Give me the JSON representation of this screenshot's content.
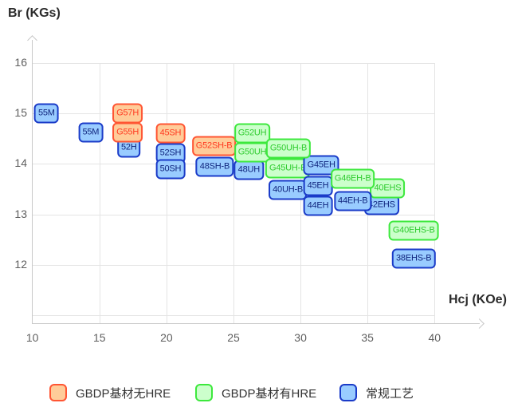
{
  "legend": [
    {
      "label": "GBDP基材无HRE",
      "category": "orange"
    },
    {
      "label": "GBDP基材有HRE",
      "category": "green"
    },
    {
      "label": "常规工艺",
      "category": "blue"
    }
  ],
  "colors": {
    "orange": {
      "fill": "#FFCC99",
      "border": "#FF5533",
      "text": "#FF3B22"
    },
    "green": {
      "fill": "#CCFFCC",
      "border": "#3DE83D",
      "text": "#2FCC2F"
    },
    "blue": {
      "fill": "#99CCFF",
      "border": "#1A3BC8",
      "text": "#10257E"
    }
  },
  "chart_data": {
    "type": "scatter",
    "title": "",
    "xlabel": "Hcj (KOe)",
    "ylabel": "Br (KGs)",
    "xlim": [
      10,
      41
    ],
    "ylim": [
      11,
      16.5
    ],
    "x_ticks": [
      10,
      15,
      20,
      25,
      30,
      35,
      40
    ],
    "y_ticks": [
      16,
      15,
      14,
      13,
      12
    ],
    "x_gridlines": [
      15,
      20,
      25,
      30,
      35,
      40
    ],
    "y_gridlines": [
      16,
      15,
      14,
      13,
      12,
      11
    ],
    "grid": true,
    "legend_position": "bottom",
    "series": [
      {
        "name": "GBDP基材无HRE",
        "category": "orange",
        "points": [
          {
            "label": "G57H",
            "hcj": 17.1,
            "br": 15.0,
            "z": 4
          },
          {
            "label": "G55H",
            "hcj": 17.1,
            "br": 14.62,
            "z": 5
          },
          {
            "label": "45SH",
            "hcj": 20.3,
            "br": 14.6,
            "z": 8
          },
          {
            "label": "G52SH-B",
            "hcj": 23.55,
            "br": 14.36,
            "z": 10
          }
        ]
      },
      {
        "name": "GBDP基材有HRE",
        "category": "green",
        "points": [
          {
            "label": "G52UH",
            "hcj": 26.4,
            "br": 14.6,
            "z": 12
          },
          {
            "label": "G50UH",
            "hcj": 26.4,
            "br": 14.22,
            "z": 13
          },
          {
            "label": "G45UH-B",
            "hcj": 29.05,
            "br": 13.91,
            "z": 15
          },
          {
            "label": "G50UH-B",
            "hcj": 29.1,
            "br": 14.3,
            "z": 17
          },
          {
            "label": "40EHS",
            "hcj": 36.5,
            "br": 13.52,
            "z": 21
          },
          {
            "label": "G46EH-B",
            "hcj": 33.9,
            "br": 13.7,
            "z": 22
          },
          {
            "label": "G40EHS-B",
            "hcj": 38.45,
            "br": 12.68,
            "z": 24
          }
        ]
      },
      {
        "name": "常规工艺",
        "category": "blue",
        "points": [
          {
            "label": "55M",
            "hcj": 11.05,
            "br": 15.0,
            "z": 1
          },
          {
            "label": "55M",
            "hcj": 14.35,
            "br": 14.63,
            "z": 2
          },
          {
            "label": "52H",
            "hcj": 17.2,
            "br": 14.33,
            "z": 3
          },
          {
            "label": "52SH",
            "hcj": 20.3,
            "br": 14.21,
            "z": 6
          },
          {
            "label": "50SH",
            "hcj": 20.3,
            "br": 13.9,
            "z": 7
          },
          {
            "label": "48SH-B",
            "hcj": 23.6,
            "br": 13.95,
            "z": 9
          },
          {
            "label": "48UH",
            "hcj": 26.15,
            "br": 13.88,
            "z": 11
          },
          {
            "label": "40UH-B",
            "hcj": 29.05,
            "br": 13.48,
            "z": 14
          },
          {
            "label": "G45EH",
            "hcj": 31.55,
            "br": 13.97,
            "z": 16
          },
          {
            "label": "45EH",
            "hcj": 31.3,
            "br": 13.56,
            "z": 18
          },
          {
            "label": "44EH",
            "hcj": 31.3,
            "br": 13.17,
            "z": 19
          },
          {
            "label": "42EHS",
            "hcj": 36.05,
            "br": 13.19,
            "z": 20
          },
          {
            "label": "44EH-B",
            "hcj": 33.9,
            "br": 13.26,
            "z": 23
          },
          {
            "label": "38EHS-B",
            "hcj": 38.45,
            "br": 12.12,
            "z": 25
          }
        ]
      }
    ]
  }
}
